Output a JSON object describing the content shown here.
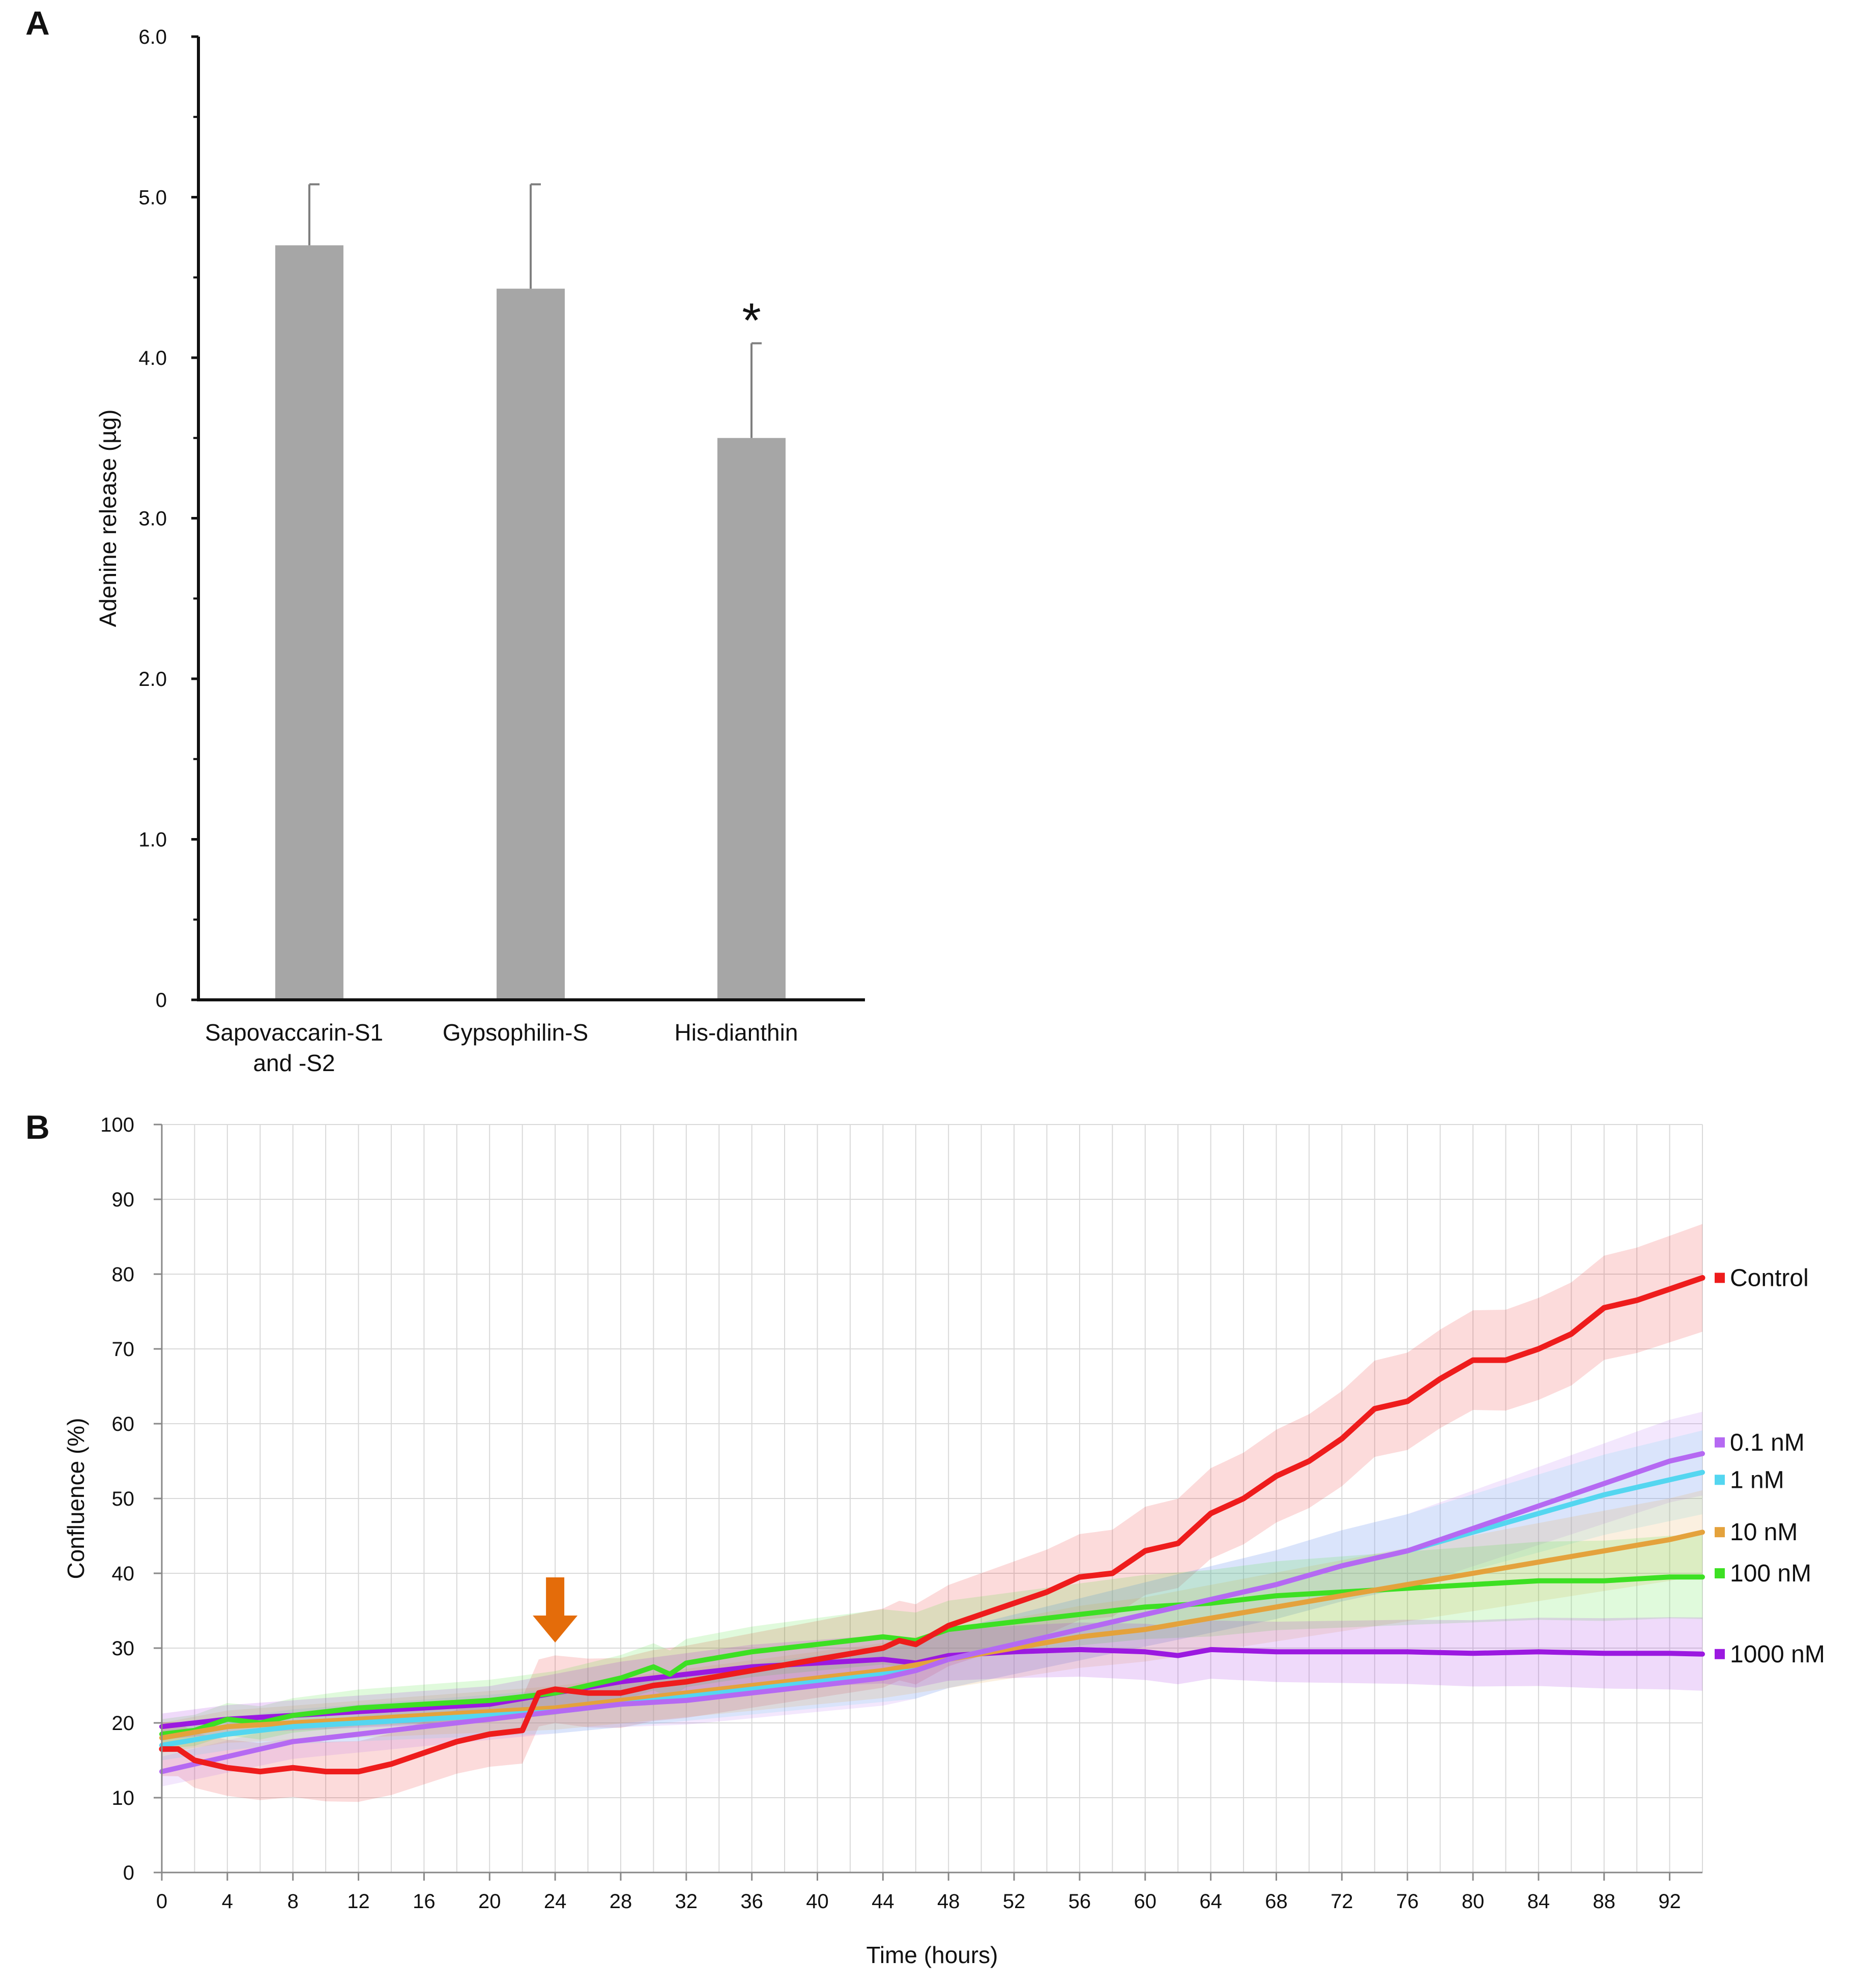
{
  "chart_data": [
    {
      "panel": "A",
      "type": "bar",
      "ylabel": "Adenine release (µg)",
      "xlabel": "",
      "ylim": [
        0,
        6.0
      ],
      "yticks": [
        "0",
        "1.0",
        "2.0",
        "3.0",
        "4.0",
        "5.0",
        "6.0"
      ],
      "categories": [
        {
          "line1": "Sapovaccarin-S1",
          "line2": "and -S2"
        },
        {
          "line1": "Gypsophilin-S",
          "line2": ""
        },
        {
          "line1": "His-dianthin",
          "line2": ""
        }
      ],
      "values": [
        4.7,
        4.43,
        3.5
      ],
      "errors": [
        0.38,
        0.65,
        0.59
      ],
      "annotations": [
        "",
        "",
        "*"
      ],
      "bar_color": "#a6a6a6",
      "error_color": "#7f7f7f"
    },
    {
      "panel": "B",
      "type": "line",
      "xlabel": "Time (hours)",
      "ylabel": "Confluence (%)",
      "xlim": [
        0,
        94
      ],
      "ylim": [
        0,
        100
      ],
      "xticks": [
        "0",
        "4",
        "8",
        "12",
        "16",
        "20",
        "24",
        "28",
        "32",
        "36",
        "40",
        "44",
        "48",
        "52",
        "56",
        "60",
        "64",
        "68",
        "72",
        "76",
        "80",
        "84",
        "88",
        "92"
      ],
      "yticks": [
        "0",
        "10",
        "20",
        "30",
        "40",
        "50",
        "60",
        "70",
        "80",
        "90",
        "100"
      ],
      "grid": true,
      "arrow_at_hour": 24,
      "arrow_color": "#e46c0a",
      "series": [
        {
          "name": "Control",
          "color": "#ee1c1c",
          "x": [
            0,
            1,
            2,
            4,
            6,
            8,
            10,
            12,
            14,
            16,
            18,
            20,
            22,
            23,
            24,
            26,
            28,
            30,
            32,
            36,
            40,
            44,
            45,
            46,
            48,
            50,
            52,
            54,
            56,
            58,
            60,
            62,
            64,
            66,
            68,
            70,
            72,
            74,
            76,
            78,
            80,
            82,
            84,
            86,
            88,
            90,
            92,
            94
          ],
          "y": [
            16.5,
            16.5,
            15,
            14,
            13.5,
            14,
            13.5,
            13.5,
            14.5,
            16,
            17.5,
            18.5,
            19,
            24,
            24.5,
            24,
            24,
            25,
            25.5,
            27,
            28.5,
            30,
            31,
            30.5,
            33,
            34.5,
            36,
            37.5,
            39.5,
            40,
            43,
            44,
            48,
            50,
            53,
            55,
            58,
            62,
            63,
            66,
            68.5,
            68.5,
            70,
            72,
            75.5,
            76.5,
            78,
            79.5
          ],
          "band": 6
        },
        {
          "name": "0.1 nM",
          "color": "#b569f2",
          "x": [
            0,
            4,
            8,
            12,
            16,
            20,
            24,
            28,
            32,
            36,
            40,
            44,
            46,
            48,
            52,
            56,
            60,
            64,
            68,
            72,
            76,
            80,
            84,
            88,
            92,
            94
          ],
          "y": [
            13.5,
            15.5,
            17.5,
            18.5,
            19.5,
            20.5,
            21.5,
            22.5,
            23,
            24,
            25,
            26,
            27,
            28.5,
            30.5,
            32.5,
            34.5,
            36.5,
            38.5,
            41,
            43,
            46,
            49,
            52,
            55,
            56
          ],
          "band": 4
        },
        {
          "name": "1 nM",
          "color": "#54d6f0",
          "x": [
            0,
            4,
            8,
            12,
            16,
            20,
            24,
            28,
            32,
            36,
            40,
            44,
            46,
            48,
            52,
            56,
            60,
            64,
            68,
            72,
            76,
            80,
            84,
            88,
            92,
            94
          ],
          "y": [
            17,
            18.5,
            19.5,
            20,
            20.5,
            21,
            21.5,
            22.5,
            23.5,
            24.5,
            25.5,
            26.5,
            27,
            28.5,
            30.5,
            32.5,
            34.5,
            36.5,
            38.5,
            41,
            43,
            45.5,
            48,
            50.5,
            52.5,
            53.5
          ],
          "band": 4
        },
        {
          "name": "10 nM",
          "color": "#e4a23c",
          "x": [
            0,
            4,
            8,
            12,
            16,
            20,
            24,
            28,
            32,
            36,
            40,
            44,
            48,
            52,
            56,
            60,
            64,
            68,
            72,
            76,
            80,
            84,
            88,
            92,
            94
          ],
          "y": [
            18,
            19.5,
            20,
            20.5,
            21,
            21.5,
            22,
            23,
            24,
            25,
            26,
            27,
            28.5,
            30,
            31.5,
            32.5,
            34,
            35.5,
            37,
            38.5,
            40,
            41.5,
            43,
            44.5,
            45.5
          ],
          "band": 4
        },
        {
          "name": "100 nM",
          "color": "#3de023",
          "x": [
            0,
            2,
            4,
            6,
            8,
            12,
            16,
            20,
            24,
            28,
            30,
            31,
            32,
            36,
            40,
            44,
            46,
            48,
            52,
            56,
            60,
            64,
            68,
            72,
            76,
            80,
            84,
            88,
            92,
            94
          ],
          "y": [
            18.5,
            19,
            20.5,
            20,
            21,
            22,
            22.5,
            23,
            24,
            26,
            27.5,
            26.5,
            28,
            29.5,
            30.5,
            31.5,
            31,
            32.5,
            33.5,
            34.5,
            35.5,
            36,
            37,
            37.5,
            38,
            38.5,
            39,
            39,
            39.5,
            39.5
          ],
          "band": 4
        },
        {
          "name": "1000 nM",
          "color": "#9b19e0",
          "x": [
            0,
            4,
            8,
            12,
            16,
            20,
            24,
            28,
            32,
            36,
            40,
            44,
            46,
            48,
            52,
            56,
            60,
            62,
            64,
            68,
            72,
            76,
            80,
            84,
            88,
            92,
            94
          ],
          "y": [
            19.5,
            20.5,
            21,
            21.5,
            22,
            22.5,
            24,
            25.5,
            26.5,
            27.5,
            28,
            28.5,
            28,
            29,
            29.5,
            29.8,
            29.5,
            29,
            29.8,
            29.5,
            29.5,
            29.5,
            29.3,
            29.5,
            29.3,
            29.3,
            29.2
          ],
          "band": 3.5
        }
      ]
    }
  ]
}
